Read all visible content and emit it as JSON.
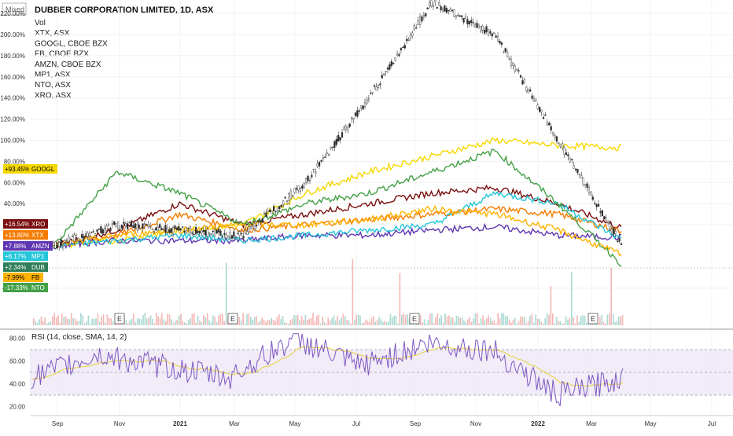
{
  "header": {
    "scale_mode": "Mixed",
    "title": "DUBBER CORPORATION LIMITED, 1D, ASX",
    "legend": [
      "Vol",
      "XTX, ASX",
      "GOOGL, CBOE BZX",
      "FB, CBOE BZX",
      "AMZN, CBOE BZX",
      "MP1, ASX",
      "NTO, ASX",
      "XRO, ASX"
    ]
  },
  "rsi_panel": {
    "title": "RSI (14, close, SMA, 14, 2)"
  },
  "x_axis": {
    "labels": [
      "Sep",
      "Nov",
      "2021",
      "Mar",
      "May",
      "Jul",
      "Sep",
      "Nov",
      "2022",
      "Mar",
      "May",
      "Jul"
    ]
  },
  "y_axis_main": {
    "labels": [
      "220.00%",
      "200.00%",
      "180.00%",
      "160.00%",
      "140.00%",
      "120.00%",
      "100.00%",
      "80.00%",
      "60.00%",
      "40.00%",
      "20.00%",
      "-40.00%"
    ]
  },
  "y_axis_rsi": {
    "labels": [
      "80.00",
      "60.00",
      "40.00",
      "20.00"
    ]
  },
  "earnings_marker": "E",
  "badges": [
    {
      "value": "+93.45%",
      "symbol": "GOOGL",
      "color": "#f5d800",
      "text_color": "#000000"
    },
    {
      "value": "+16.54%",
      "symbol": "XRO",
      "color": "#7a0e0e",
      "text_color": "#ffffff"
    },
    {
      "value": "+13.80%",
      "symbol": "XTX",
      "color": "#f57c00",
      "text_color": "#ffffff"
    },
    {
      "value": "+7.88%",
      "symbol": "AMZN",
      "color": "#5e35b1",
      "text_color": "#ffffff"
    },
    {
      "value": "+6.17%",
      "symbol": "MP1",
      "color": "#26c6da",
      "text_color": "#ffffff"
    },
    {
      "value": "+2.34%",
      "symbol": "DUB",
      "color": "#2e7d5b",
      "text_color": "#ffffff"
    },
    {
      "value": "-7.99%",
      "symbol": "FB",
      "color": "#ffb300",
      "text_color": "#000000"
    },
    {
      "value": "-17.33%",
      "symbol": "NTO",
      "color": "#43a047",
      "text_color": "#ffffff"
    }
  ],
  "colors": {
    "XRO": "#7a0e0e",
    "XTX": "#f57c00",
    "GOOGL": "#f5d800",
    "AMZN": "#5e35b1",
    "MP1": "#26c6da",
    "NTO": "#43a047",
    "FB": "#ffb300",
    "RSI": "#7e57c2",
    "RSI_MA": "#e6d23a",
    "up": "#26a69a",
    "down": "#ef5350"
  },
  "chart_data": {
    "type": "line",
    "categories": [
      "Sep",
      "Nov",
      "2021",
      "Mar",
      "May",
      "Jul",
      "Sep",
      "Nov",
      "2022",
      "Mar"
    ],
    "ylim": [
      -40,
      220
    ],
    "series": [
      {
        "name": "DUB",
        "values": [
          0,
          20,
          15,
          10,
          60,
          140,
          230,
          200,
          100,
          2
        ]
      },
      {
        "name": "XRO",
        "values": [
          0,
          15,
          40,
          20,
          30,
          40,
          50,
          55,
          40,
          17
        ]
      },
      {
        "name": "XTX",
        "values": [
          0,
          10,
          30,
          15,
          20,
          25,
          30,
          35,
          30,
          14
        ]
      },
      {
        "name": "GOOGL",
        "values": [
          0,
          5,
          15,
          20,
          50,
          70,
          85,
          100,
          95,
          93
        ]
      },
      {
        "name": "AMZN",
        "values": [
          0,
          5,
          5,
          5,
          10,
          10,
          15,
          18,
          10,
          8
        ]
      },
      {
        "name": "MP1",
        "values": [
          0,
          5,
          10,
          5,
          10,
          15,
          20,
          50,
          40,
          6
        ]
      },
      {
        "name": "NTO",
        "values": [
          0,
          70,
          50,
          20,
          40,
          50,
          70,
          90,
          40,
          -17
        ]
      },
      {
        "name": "FB",
        "values": [
          0,
          10,
          15,
          20,
          20,
          25,
          35,
          30,
          15,
          -8
        ]
      }
    ],
    "rsi": [
      {
        "x": "Sep",
        "rsi": 45
      },
      {
        "x": "Nov",
        "rsi": 65
      },
      {
        "x": "2021",
        "rsi": 55
      },
      {
        "x": "Mar",
        "rsi": 45
      },
      {
        "x": "May",
        "rsi": 80
      },
      {
        "x": "Jul",
        "rsi": 55
      },
      {
        "x": "Sep",
        "rsi": 75
      },
      {
        "x": "Nov",
        "rsi": 70
      },
      {
        "x": "2022",
        "rsi": 30
      },
      {
        "x": "Mar",
        "rsi": 45
      }
    ]
  }
}
